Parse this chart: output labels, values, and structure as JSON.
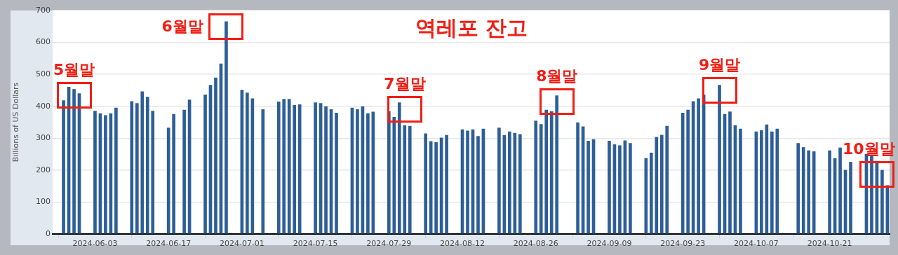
{
  "chart_data": {
    "type": "bar",
    "title": "역레포 잔고",
    "ylabel": "Billions of US Dollars",
    "color": "#2e5e96",
    "x": [
      "2024-05-28",
      "2024-05-29",
      "2024-05-30",
      "2024-05-31",
      "2024-06-03",
      "2024-06-04",
      "2024-06-05",
      "2024-06-06",
      "2024-06-07",
      "2024-06-10",
      "2024-06-11",
      "2024-06-12",
      "2024-06-13",
      "2024-06-14",
      "2024-06-17",
      "2024-06-18",
      "2024-06-20",
      "2024-06-21",
      "2024-06-24",
      "2024-06-25",
      "2024-06-26",
      "2024-06-27",
      "2024-06-28",
      "2024-07-01",
      "2024-07-02",
      "2024-07-03",
      "2024-07-05",
      "2024-07-08",
      "2024-07-09",
      "2024-07-10",
      "2024-07-11",
      "2024-07-12",
      "2024-07-15",
      "2024-07-16",
      "2024-07-17",
      "2024-07-18",
      "2024-07-19",
      "2024-07-22",
      "2024-07-23",
      "2024-07-24",
      "2024-07-25",
      "2024-07-26",
      "2024-07-29",
      "2024-07-30",
      "2024-07-31",
      "2024-08-01",
      "2024-08-02",
      "2024-08-05",
      "2024-08-06",
      "2024-08-07",
      "2024-08-08",
      "2024-08-09",
      "2024-08-12",
      "2024-08-13",
      "2024-08-14",
      "2024-08-15",
      "2024-08-16",
      "2024-08-19",
      "2024-08-20",
      "2024-08-21",
      "2024-08-22",
      "2024-08-23",
      "2024-08-26",
      "2024-08-27",
      "2024-08-28",
      "2024-08-29",
      "2024-08-30",
      "2024-09-03",
      "2024-09-04",
      "2024-09-05",
      "2024-09-06",
      "2024-09-09",
      "2024-09-10",
      "2024-09-11",
      "2024-09-12",
      "2024-09-13",
      "2024-09-16",
      "2024-09-17",
      "2024-09-18",
      "2024-09-19",
      "2024-09-20",
      "2024-09-23",
      "2024-09-24",
      "2024-09-25",
      "2024-09-26",
      "2024-09-27",
      "2024-09-30",
      "2024-10-01",
      "2024-10-02",
      "2024-10-03",
      "2024-10-04",
      "2024-10-07",
      "2024-10-08",
      "2024-10-09",
      "2024-10-10",
      "2024-10-11",
      "2024-10-15",
      "2024-10-16",
      "2024-10-17",
      "2024-10-18",
      "2024-10-21",
      "2024-10-22",
      "2024-10-23",
      "2024-10-24",
      "2024-10-25",
      "2024-10-28",
      "2024-10-29",
      "2024-10-30",
      "2024-10-31",
      "2024-11-01"
    ],
    "values": [
      418,
      460,
      453,
      440,
      385,
      377,
      371,
      377,
      395,
      415,
      409,
      446,
      429,
      385,
      332,
      375,
      388,
      420,
      436,
      466,
      489,
      533,
      665,
      451,
      442,
      424,
      390,
      414,
      422,
      422,
      403,
      405,
      411,
      409,
      399,
      390,
      379,
      395,
      390,
      399,
      377,
      382,
      384,
      366,
      411,
      340,
      338,
      314,
      290,
      287,
      301,
      309,
      327,
      323,
      327,
      306,
      329,
      332,
      309,
      320,
      316,
      312,
      354,
      343,
      388,
      384,
      433,
      349,
      336,
      291,
      296,
      291,
      280,
      277,
      292,
      284,
      237,
      254,
      303,
      310,
      338,
      379,
      388,
      415,
      424,
      436,
      466,
      375,
      383,
      340,
      329,
      320,
      324,
      342,
      320,
      329,
      284,
      271,
      261,
      258,
      261,
      237,
      270,
      200,
      225,
      250,
      243,
      228,
      200,
      152
    ],
    "xlim": [
      "2024-05-25T22:00",
      "2024-11-01T10:00"
    ],
    "xticks": [
      "2024-06-03",
      "2024-06-17",
      "2024-07-01",
      "2024-07-15",
      "2024-07-29",
      "2024-08-12",
      "2024-08-26",
      "2024-09-09",
      "2024-09-23",
      "2024-10-07",
      "2024-10-21"
    ],
    "ylim": [
      0,
      700
    ],
    "yticks": [
      0,
      100,
      200,
      300,
      400,
      500,
      600,
      700
    ],
    "grid": "y",
    "legend": false,
    "annotations": [
      {
        "text": "5월말",
        "x": "2024-05-30",
        "y": 435
      },
      {
        "text": "6월말",
        "x": "2024-06-28",
        "y": 650
      },
      {
        "text": "7월말",
        "x": "2024-08-01",
        "y": 390
      },
      {
        "text": "8월말",
        "x": "2024-08-30",
        "y": 414
      },
      {
        "text": "9월말",
        "x": "2024-09-30",
        "y": 450
      },
      {
        "text": "10월말",
        "x": "2024-10-30",
        "y": 186
      }
    ]
  }
}
